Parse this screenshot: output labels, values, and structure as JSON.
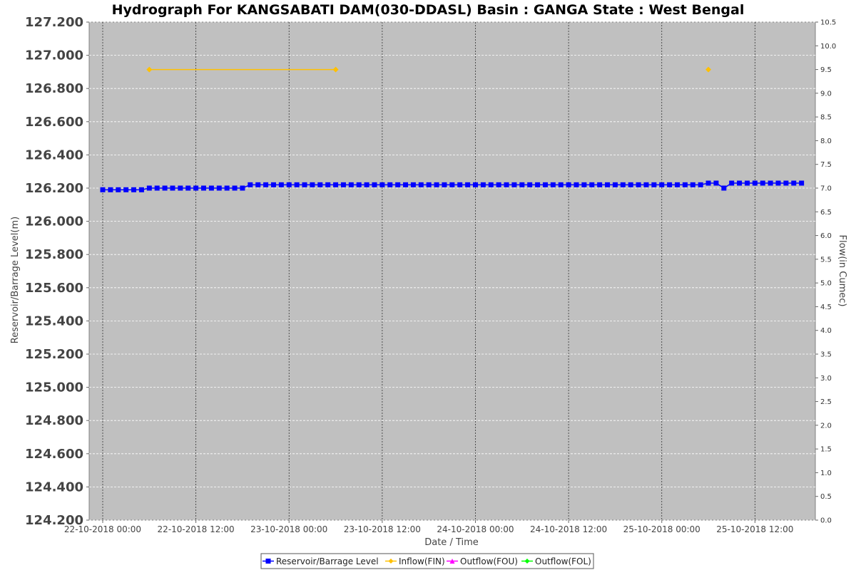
{
  "chart_data": {
    "type": "line",
    "title": "Hydrograph For KANGSABATI DAM(030-DDASL) Basin : GANGA State : West Bengal",
    "xlabel": "Date / Time",
    "ylabel": "Reservoir/Barrage Level(m)",
    "y2label": "Flow(in Cumec)",
    "ylim": [
      124.2,
      127.2
    ],
    "y2lim": [
      0.0,
      10.5
    ],
    "xlim": [
      "22-10-2018 00:00",
      "25-10-2018 18:00"
    ],
    "x_ticks": [
      "22-10-2018 00:00",
      "22-10-2018 12:00",
      "23-10-2018 00:00",
      "23-10-2018 12:00",
      "24-10-2018 00:00",
      "24-10-2018 12:00",
      "25-10-2018 00:00",
      "25-10-2018 12:00"
    ],
    "y_ticks": [
      "127.200",
      "127.000",
      "126.800",
      "126.600",
      "126.400",
      "126.200",
      "126.000",
      "125.800",
      "125.600",
      "125.400",
      "125.200",
      "125.000",
      "124.800",
      "124.600",
      "124.400",
      "124.200"
    ],
    "y2_ticks": [
      "10.5",
      "10.0",
      "9.5",
      "9.0",
      "8.5",
      "8.0",
      "7.5",
      "7.0",
      "6.5",
      "6.0",
      "5.5",
      "5.0",
      "4.5",
      "4.0",
      "3.5",
      "3.0",
      "2.5",
      "2.0",
      "1.5",
      "1.0",
      "0.5",
      "0.0"
    ],
    "grid": true,
    "legend_position": "bottom",
    "series": [
      {
        "name": "Reservoir/Barrage Level",
        "axis": "left",
        "color": "#0000ff",
        "marker": "square",
        "start": "22-10-2018 00:00",
        "step_hours": 1,
        "values": [
          126.19,
          126.19,
          126.19,
          126.19,
          126.19,
          126.19,
          126.2,
          126.2,
          126.2,
          126.2,
          126.2,
          126.2,
          126.2,
          126.2,
          126.2,
          126.2,
          126.2,
          126.2,
          126.2,
          126.22,
          126.22,
          126.22,
          126.22,
          126.22,
          126.22,
          126.22,
          126.22,
          126.22,
          126.22,
          126.22,
          126.22,
          126.22,
          126.22,
          126.22,
          126.22,
          126.22,
          126.22,
          126.22,
          126.22,
          126.22,
          126.22,
          126.22,
          126.22,
          126.22,
          126.22,
          126.22,
          126.22,
          126.22,
          126.22,
          126.22,
          126.22,
          126.22,
          126.22,
          126.22,
          126.22,
          126.22,
          126.22,
          126.22,
          126.22,
          126.22,
          126.22,
          126.22,
          126.22,
          126.22,
          126.22,
          126.22,
          126.22,
          126.22,
          126.22,
          126.22,
          126.22,
          126.22,
          126.22,
          126.22,
          126.22,
          126.22,
          126.22,
          126.22,
          126.23,
          126.23,
          126.2,
          126.23,
          126.23,
          126.23,
          126.23,
          126.23,
          126.23,
          126.23,
          126.23,
          126.23,
          126.23
        ]
      },
      {
        "name": "Inflow(FIN)",
        "axis": "right",
        "color": "#ffc000",
        "marker": "diamond",
        "points": [
          {
            "x": "22-10-2018 06:00",
            "y": 9.5,
            "connect_next": true
          },
          {
            "x": "23-10-2018 06:00",
            "y": 9.5,
            "connect_next": false
          },
          {
            "x": "25-10-2018 06:00",
            "y": 9.5,
            "connect_next": false
          }
        ]
      },
      {
        "name": "Outflow(FOU)",
        "axis": "right",
        "color": "#ff00ff",
        "marker": "triangle",
        "points": []
      },
      {
        "name": "Outflow(FOL)",
        "axis": "right",
        "color": "#00ff00",
        "marker": "diamond",
        "points": []
      }
    ]
  }
}
